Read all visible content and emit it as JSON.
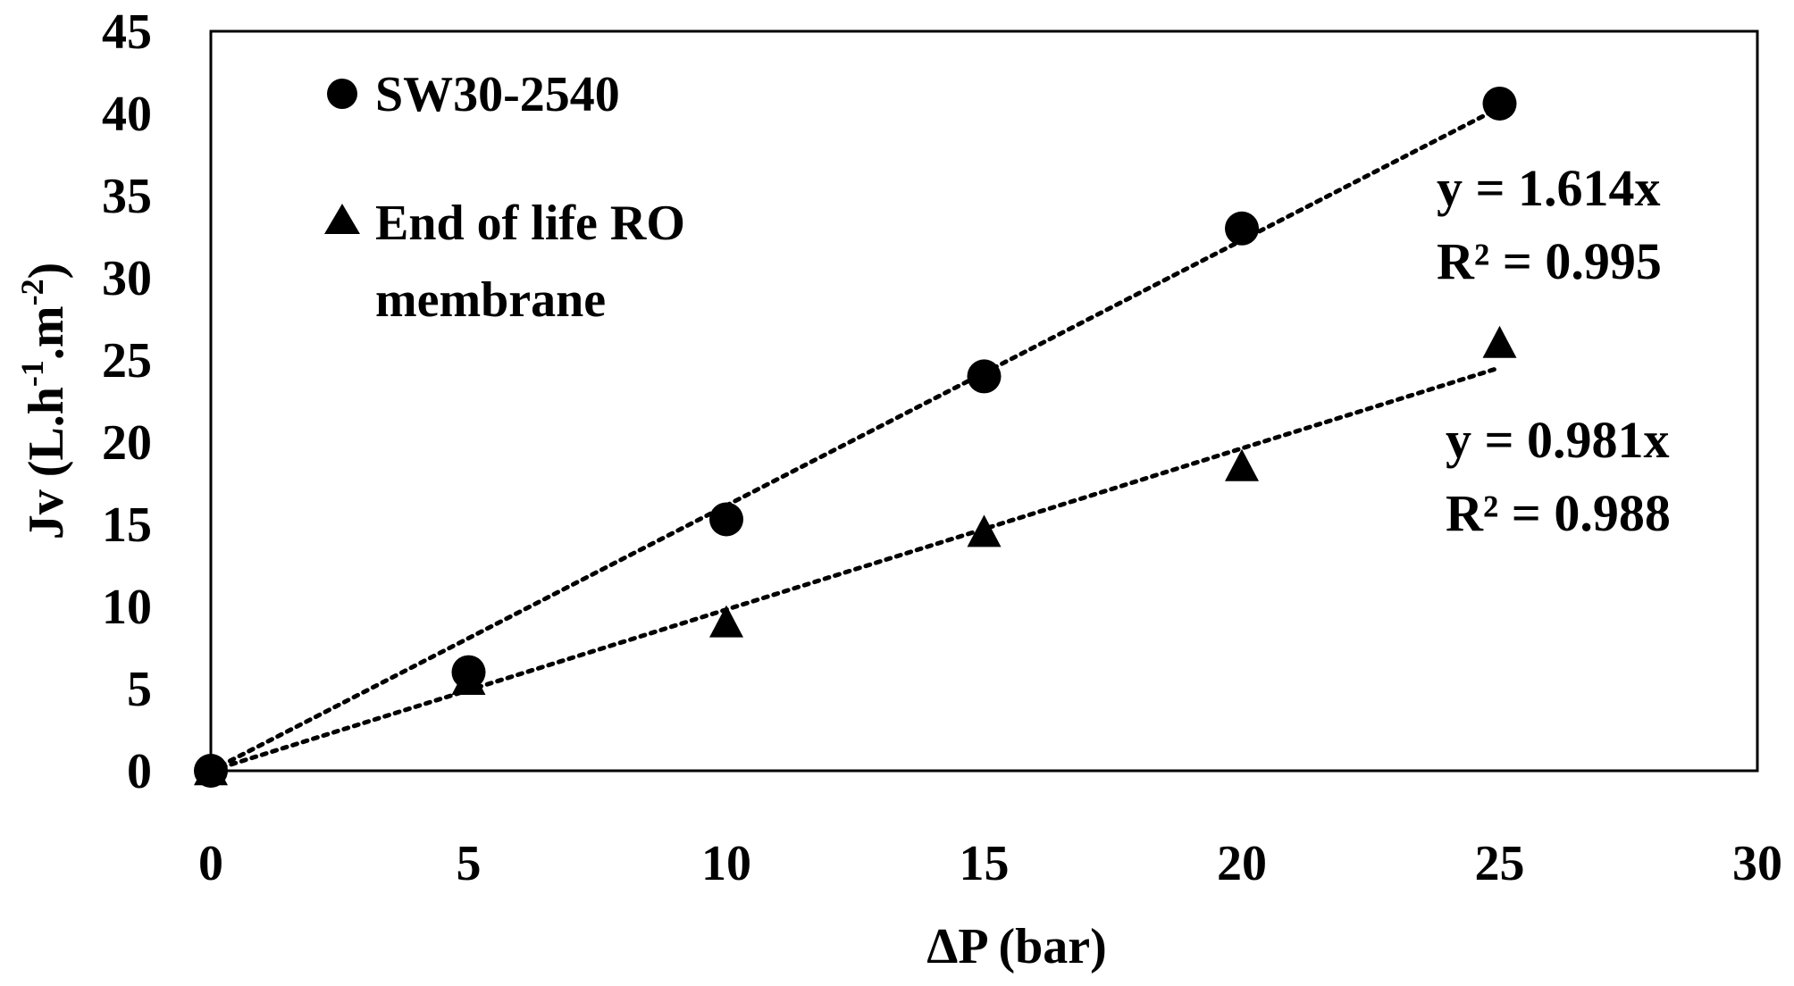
{
  "chart_data": {
    "type": "scatter",
    "xlabel": "ΔP (bar)",
    "ylabel_main": "Jv (L.h",
    "ylabel_sup1": "-1",
    "ylabel_mid": ".m",
    "ylabel_sup2": "-2",
    "ylabel_end": ")",
    "xlim": [
      0,
      30
    ],
    "ylim": [
      0,
      45
    ],
    "x_ticks": [
      "0",
      "5",
      "10",
      "15",
      "20",
      "25",
      "30"
    ],
    "y_ticks": [
      "0",
      "5",
      "10",
      "15",
      "20",
      "25",
      "30",
      "35",
      "40",
      "45"
    ],
    "grid": false,
    "legend_position": "top-left",
    "series": [
      {
        "name": "SW30-2540",
        "marker": "circle",
        "color": "#000000",
        "x": [
          0,
          5,
          10,
          15,
          20,
          25
        ],
        "y": [
          0,
          6,
          15.3,
          24,
          33,
          40.6
        ],
        "trendline": {
          "slope": 1.614,
          "style": "dotted"
        },
        "equation": "y = 1.614x",
        "r2_label": "R² = 0.995"
      },
      {
        "name_line1": "End of life RO",
        "name_line2": "membrane",
        "marker": "triangle",
        "color": "#000000",
        "x": [
          0,
          5,
          10,
          15,
          20,
          25
        ],
        "y": [
          0,
          5.5,
          9,
          14.5,
          18.5,
          26
        ],
        "trendline": {
          "slope": 0.981,
          "style": "dotted"
        },
        "equation": "y = 0.981x",
        "r2_label": "R² = 0.988"
      }
    ]
  }
}
